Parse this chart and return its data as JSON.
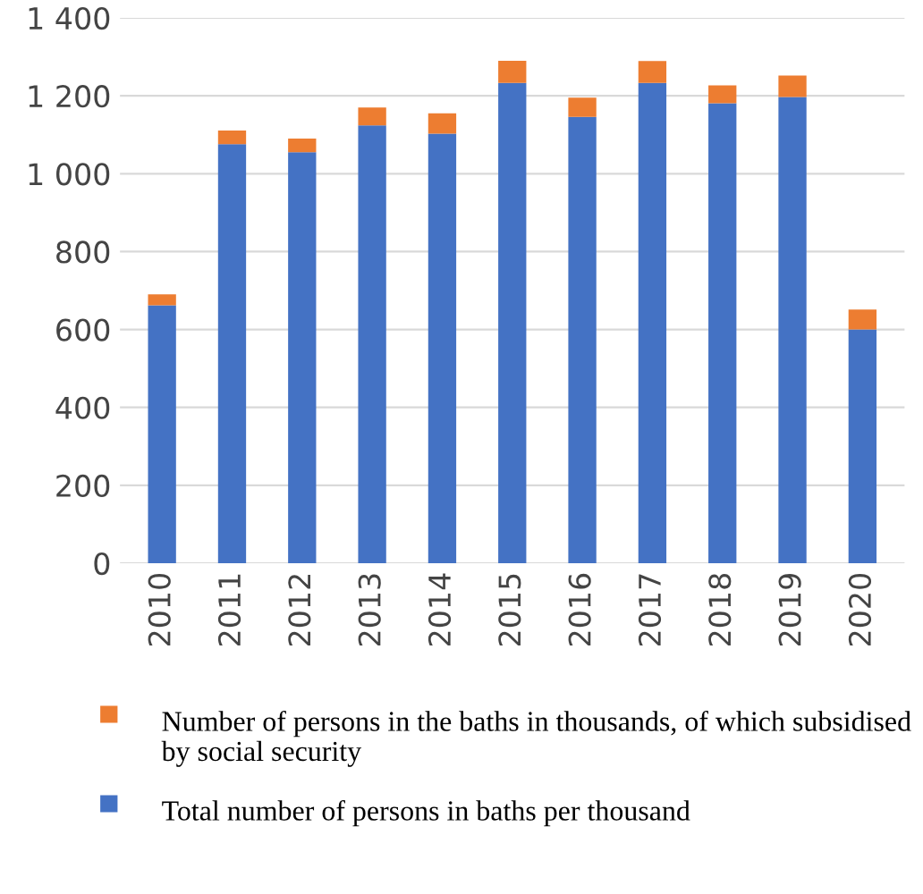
{
  "chart_data": {
    "type": "bar",
    "stacked": true,
    "categories": [
      "2010",
      "2011",
      "2012",
      "2013",
      "2014",
      "2015",
      "2016",
      "2017",
      "2018",
      "2019",
      "2020"
    ],
    "series": [
      {
        "name": "Total number of persons in baths per thousand",
        "color": "#4472c4",
        "values": [
          662,
          1076,
          1055,
          1124,
          1103,
          1233,
          1146,
          1233,
          1181,
          1197,
          600
        ]
      },
      {
        "name": "Number of persons in the baths in thousands, of which subsidised by social security",
        "color": "#ed7d31",
        "values": [
          28,
          35,
          35,
          46,
          52,
          57,
          49,
          56,
          46,
          55,
          51
        ]
      }
    ],
    "ylim": [
      0,
      1400
    ],
    "yticks": [
      0,
      200,
      400,
      600,
      800,
      {
        "value": 1000,
        "label": "1 000"
      },
      {
        "value": 1200,
        "label": "1 200"
      },
      {
        "value": 1400,
        "label": "1 400"
      }
    ],
    "grid": "y",
    "legend": "bottom"
  }
}
